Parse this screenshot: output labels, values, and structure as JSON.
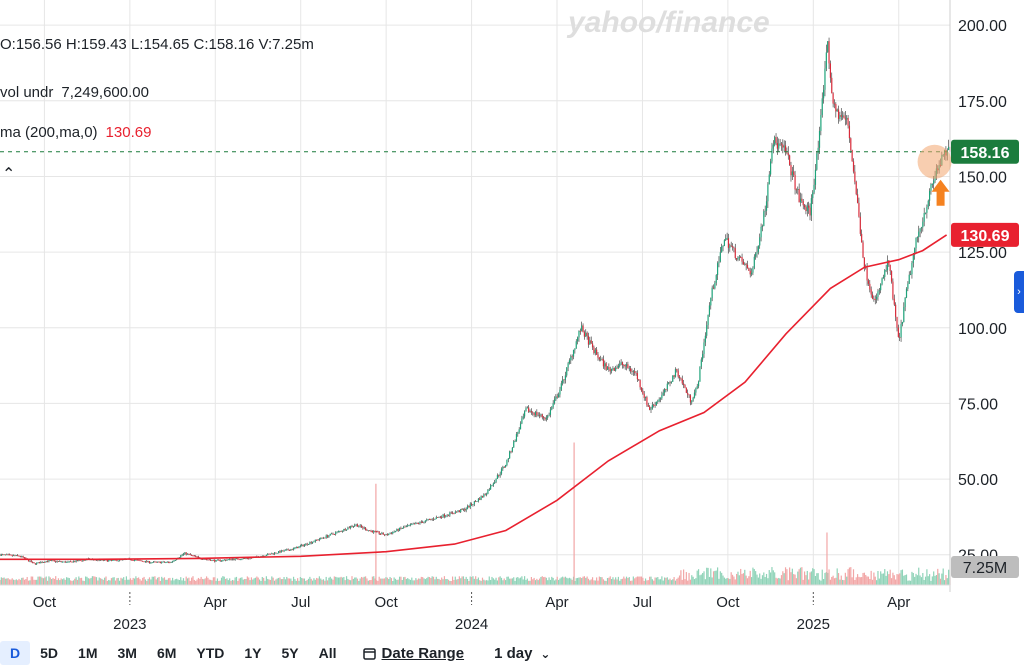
{
  "watermark": "yahoo/finance",
  "legend": {
    "ohlc": "O:156.56   H:159.43   L:154.65   C:158.16   V:7.25m",
    "volume_label": "vol undr",
    "volume_value": "7,249,600.00",
    "ma_label": "ma (200,ma,0)",
    "ma_value": "130.69"
  },
  "badges": {
    "last_price": "158.16",
    "ma_price": "130.69",
    "volume": "7.25M"
  },
  "colors": {
    "up": "#1ea37a",
    "down": "#d92b3a",
    "ma": "#e8212f",
    "price_badge": "#1b7c3d",
    "ma_badge": "#e8212f",
    "highlight": "#f3a56f",
    "arrow": "#f58220"
  },
  "toolbar": {
    "ranges": [
      "D",
      "5D",
      "1M",
      "3M",
      "6M",
      "YTD",
      "1Y",
      "5Y",
      "All"
    ],
    "active_range": "D",
    "date_range_label": "Date Range",
    "interval_label": "1 day"
  },
  "chart_data": {
    "type": "line",
    "title": "",
    "ylim": [
      15,
      205
    ],
    "y_ticks": [
      "25.00",
      "50.00",
      "75.00",
      "100.00",
      "125.00",
      "150.00",
      "175.00",
      "200.00"
    ],
    "x_ticks": [
      {
        "label": "Oct",
        "t": 2022.75
      },
      {
        "label": "Apr",
        "t": 2023.25
      },
      {
        "label": "Jul",
        "t": 2023.5
      },
      {
        "label": "Oct",
        "t": 2023.75
      },
      {
        "label": "Apr",
        "t": 2024.25
      },
      {
        "label": "Jul",
        "t": 2024.5
      },
      {
        "label": "Oct",
        "t": 2024.75
      },
      {
        "label": "Apr",
        "t": 2025.25
      }
    ],
    "year_ticks": [
      {
        "label": "2023",
        "t": 2023.0
      },
      {
        "label": "2024",
        "t": 2024.0
      },
      {
        "label": "2025",
        "t": 2025.0
      }
    ],
    "x_range": [
      2022.62,
      2025.4
    ],
    "series": [
      {
        "name": "price",
        "points": [
          [
            2022.62,
            25
          ],
          [
            2022.68,
            24.5
          ],
          [
            2022.72,
            22
          ],
          [
            2022.76,
            23
          ],
          [
            2022.82,
            22.5
          ],
          [
            2022.88,
            23.5
          ],
          [
            2022.94,
            23
          ],
          [
            2023.0,
            23.5
          ],
          [
            2023.06,
            22.5
          ],
          [
            2023.12,
            22.5
          ],
          [
            2023.16,
            25.5
          ],
          [
            2023.2,
            24
          ],
          [
            2023.25,
            23
          ],
          [
            2023.3,
            23.5
          ],
          [
            2023.36,
            24
          ],
          [
            2023.42,
            25.5
          ],
          [
            2023.48,
            27
          ],
          [
            2023.55,
            30
          ],
          [
            2023.62,
            33
          ],
          [
            2023.66,
            35
          ],
          [
            2023.7,
            33
          ],
          [
            2023.75,
            31.5
          ],
          [
            2023.8,
            34
          ],
          [
            2023.86,
            36
          ],
          [
            2023.92,
            38
          ],
          [
            2023.98,
            40
          ],
          [
            2024.04,
            45
          ],
          [
            2024.1,
            55
          ],
          [
            2024.16,
            73
          ],
          [
            2024.22,
            70
          ],
          [
            2024.26,
            80
          ],
          [
            2024.32,
            100
          ],
          [
            2024.36,
            92
          ],
          [
            2024.4,
            86
          ],
          [
            2024.44,
            88
          ],
          [
            2024.48,
            85
          ],
          [
            2024.52,
            73
          ],
          [
            2024.56,
            78
          ],
          [
            2024.6,
            86
          ],
          [
            2024.64,
            76
          ],
          [
            2024.66,
            80
          ],
          [
            2024.7,
            110
          ],
          [
            2024.74,
            130
          ],
          [
            2024.78,
            123
          ],
          [
            2024.82,
            118
          ],
          [
            2024.86,
            140
          ],
          [
            2024.88,
            162
          ],
          [
            2024.92,
            158
          ],
          [
            2024.96,
            142
          ],
          [
            2024.99,
            138
          ],
          [
            2025.02,
            165
          ],
          [
            2025.04,
            195
          ],
          [
            2025.06,
            172
          ],
          [
            2025.1,
            168
          ],
          [
            2025.12,
            150
          ],
          [
            2025.15,
            120
          ],
          [
            2025.18,
            108
          ],
          [
            2025.22,
            122
          ],
          [
            2025.25,
            95
          ],
          [
            2025.27,
            110
          ],
          [
            2025.3,
            128
          ],
          [
            2025.33,
            140
          ],
          [
            2025.36,
            152
          ],
          [
            2025.39,
            158.16
          ]
        ]
      },
      {
        "name": "ma (200,ma,0)",
        "points": [
          [
            2022.62,
            23.5
          ],
          [
            2022.9,
            23.5
          ],
          [
            2023.2,
            23.8
          ],
          [
            2023.5,
            24.5
          ],
          [
            2023.75,
            26
          ],
          [
            2023.95,
            28.5
          ],
          [
            2024.1,
            33
          ],
          [
            2024.25,
            43
          ],
          [
            2024.4,
            56
          ],
          [
            2024.55,
            66
          ],
          [
            2024.68,
            72
          ],
          [
            2024.8,
            82
          ],
          [
            2024.92,
            98
          ],
          [
            2025.05,
            113
          ],
          [
            2025.15,
            120
          ],
          [
            2025.25,
            122.5
          ],
          [
            2025.32,
            125.5
          ],
          [
            2025.39,
            130.69
          ]
        ]
      }
    ],
    "volume_ylim": [
      0,
      40
    ],
    "volume_spikes": [
      {
        "t": 2023.72,
        "v": 27
      },
      {
        "t": 2024.3,
        "v": 38
      },
      {
        "t": 2025.04,
        "v": 14
      }
    ]
  }
}
